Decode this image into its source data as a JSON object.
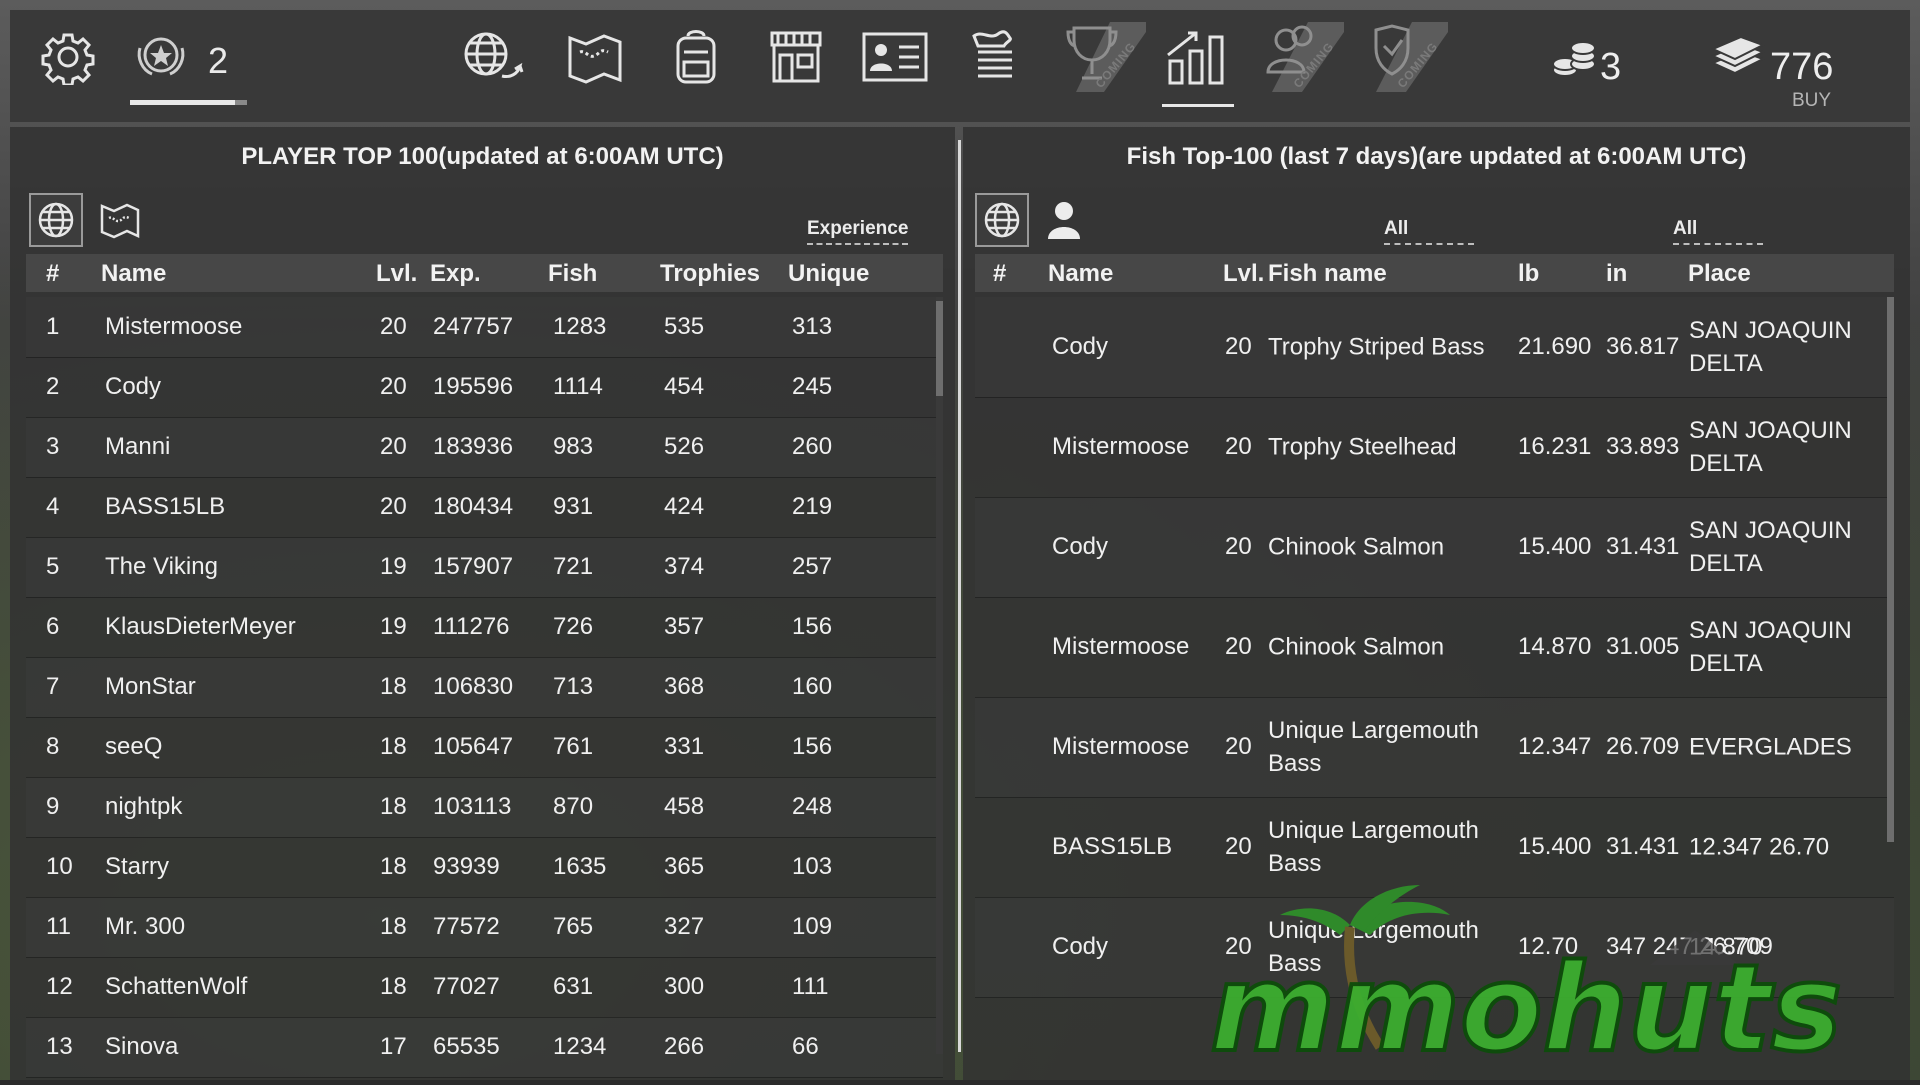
{
  "topbar": {
    "rank_count": "2",
    "coins": "3",
    "money": "776",
    "buy_label": "BUY",
    "coming_label": "COMING",
    "icons": [
      "gear-icon",
      "rank-star-icon",
      "world-return-icon",
      "map-icon",
      "backpack-icon",
      "shop-icon",
      "profile-card-icon",
      "news-list-icon",
      "trophy-icon",
      "chart-icon",
      "friends-icon",
      "clan-shield-icon",
      "coins-icon",
      "money-stack-icon"
    ]
  },
  "left": {
    "title": "PLAYER TOP 100(updated at 6:00AM UTC)",
    "sort_label": "Experience",
    "headers": [
      "#",
      "Name",
      "Lvl.",
      "Exp.",
      "Fish",
      "Trophies",
      "Unique"
    ],
    "rows": [
      [
        "1",
        "Mistermoose",
        "20",
        "247757",
        "1283",
        "535",
        "313"
      ],
      [
        "2",
        "Cody",
        "20",
        "195596",
        "1114",
        "454",
        "245"
      ],
      [
        "3",
        "Manni",
        "20",
        "183936",
        "983",
        "526",
        "260"
      ],
      [
        "4",
        "BASS15LB",
        "20",
        "180434",
        "931",
        "424",
        "219"
      ],
      [
        "5",
        "The Viking",
        "19",
        "157907",
        "721",
        "374",
        "257"
      ],
      [
        "6",
        "KlausDieterMeyer",
        "19",
        "111276",
        "726",
        "357",
        "156"
      ],
      [
        "7",
        "MonStar",
        "18",
        "106830",
        "713",
        "368",
        "160"
      ],
      [
        "8",
        "seeQ",
        "18",
        "105647",
        "761",
        "331",
        "156"
      ],
      [
        "9",
        "nightpk",
        "18",
        "103113",
        "870",
        "458",
        "248"
      ],
      [
        "10",
        "Starry",
        "18",
        "93939",
        "1635",
        "365",
        "103"
      ],
      [
        "11",
        "Mr. 300",
        "18",
        "77572",
        "765",
        "327",
        "109"
      ],
      [
        "12",
        "SchattenWolf",
        "18",
        "77027",
        "631",
        "300",
        "111"
      ],
      [
        "13",
        "Sinova",
        "17",
        "65535",
        "1234",
        "266",
        "66"
      ]
    ]
  },
  "right": {
    "title": "Fish Top-100 (last 7 days)(are updated at 6:00AM UTC)",
    "filter1": "All",
    "filter2": "All",
    "headers": [
      "#",
      "Name",
      "Lvl.",
      "Fish name",
      "lb",
      "in",
      "Place"
    ],
    "rows": [
      [
        "",
        "Cody",
        "20",
        "Trophy Striped Bass",
        "21.690",
        "36.817",
        "SAN JOAQUIN DELTA"
      ],
      [
        "",
        "Mistermoose",
        "20",
        "Trophy Steelhead",
        "16.231",
        "33.893",
        "SAN JOAQUIN DELTA"
      ],
      [
        "",
        "Cody",
        "20",
        "Chinook Salmon",
        "15.400",
        "31.431",
        "SAN JOAQUIN DELTA"
      ],
      [
        "",
        "Mistermoose",
        "20",
        "Chinook Salmon",
        "14.870",
        "31.005",
        "SAN JOAQUIN DELTA"
      ],
      [
        "",
        "Mistermoose",
        "20",
        "Unique Largemouth Bass",
        "12.347",
        "26.709",
        "EVERGLADES"
      ],
      [
        "",
        "BASS15LB",
        "20",
        "Unique Largemouth Bass",
        "15.400",
        "31.431",
        "12.347 26.70"
      ],
      [
        "",
        "Cody",
        "20",
        "Unique Largemouth Bass",
        "12.70",
        "347 247 26.709",
        "14.870"
      ]
    ]
  },
  "watermark": "mmohuts"
}
